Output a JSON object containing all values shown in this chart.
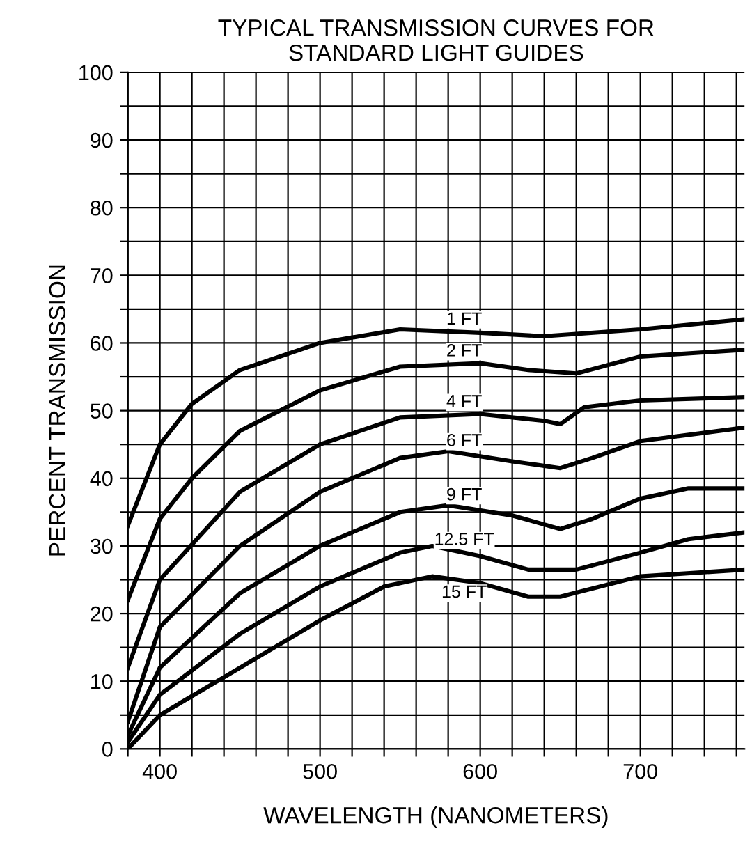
{
  "chart_data": {
    "type": "line",
    "title": "TYPICAL TRANSMISSION CURVES FOR\nSTANDARD LIGHT GUIDES",
    "xlabel": "WAVELENGTH (NANOMETERS)",
    "ylabel": "PERCENT TRANSMISSION",
    "xlim": [
      380,
      765
    ],
    "ylim": [
      0,
      100
    ],
    "xticks": [
      {
        "value": 380,
        "label": null
      },
      400,
      {
        "value": 420,
        "label": null
      },
      {
        "value": 440,
        "label": null
      },
      {
        "value": 460,
        "label": null
      },
      {
        "value": 480,
        "label": null
      },
      500,
      {
        "value": 520,
        "label": null
      },
      {
        "value": 540,
        "label": null
      },
      {
        "value": 560,
        "label": null
      },
      {
        "value": 580,
        "label": null
      },
      600,
      {
        "value": 620,
        "label": null
      },
      {
        "value": 640,
        "label": null
      },
      {
        "value": 660,
        "label": null
      },
      {
        "value": 680,
        "label": null
      },
      700,
      {
        "value": 720,
        "label": null
      },
      {
        "value": 740,
        "label": null
      },
      {
        "value": 760,
        "label": null
      }
    ],
    "yticks": [
      0,
      {
        "value": 5,
        "label": null
      },
      10,
      {
        "value": 15,
        "label": null
      },
      20,
      {
        "value": 25,
        "label": null
      },
      30,
      {
        "value": 35,
        "label": null
      },
      40,
      {
        "value": 45,
        "label": null
      },
      50,
      {
        "value": 55,
        "label": null
      },
      60,
      {
        "value": 65,
        "label": null
      },
      70,
      {
        "value": 75,
        "label": null
      },
      80,
      {
        "value": 85,
        "label": null
      },
      90,
      {
        "value": 95,
        "label": null
      },
      100
    ],
    "grid": true,
    "marker": "none",
    "line_style": "solid",
    "legend": false,
    "series": [
      {
        "name": "1 FT",
        "color": "#000000",
        "x": [
          380,
          400,
          420,
          450,
          500,
          550,
          600,
          640,
          700,
          765
        ],
        "values": [
          33,
          45,
          51,
          56,
          60,
          62,
          61.5,
          61,
          62,
          63.5
        ]
      },
      {
        "name": "2 FT",
        "color": "#000000",
        "x": [
          380,
          400,
          420,
          450,
          500,
          550,
          600,
          630,
          660,
          700,
          765
        ],
        "values": [
          22,
          34,
          40,
          47,
          53,
          56.5,
          57,
          56,
          55.5,
          58,
          59
        ]
      },
      {
        "name": "4 FT",
        "color": "#000000",
        "x": [
          380,
          400,
          450,
          500,
          550,
          600,
          640,
          650,
          665,
          700,
          765
        ],
        "values": [
          12,
          25,
          38,
          45,
          49,
          49.5,
          48.5,
          48,
          50.5,
          51.5,
          52
        ]
      },
      {
        "name": "6 FT",
        "color": "#000000",
        "x": [
          380,
          400,
          450,
          500,
          550,
          580,
          620,
          650,
          670,
          700,
          765
        ],
        "values": [
          4,
          18,
          30,
          38,
          43,
          44,
          42.5,
          41.5,
          43,
          45.5,
          47.5
        ]
      },
      {
        "name": "9 FT",
        "color": "#000000",
        "x": [
          380,
          400,
          450,
          500,
          550,
          580,
          620,
          650,
          670,
          700,
          730,
          765
        ],
        "values": [
          2,
          12,
          23,
          30,
          35,
          36,
          34.5,
          32.5,
          34,
          37,
          38.5,
          38.5
        ]
      },
      {
        "name": "12.5 FT",
        "color": "#000000",
        "x": [
          380,
          400,
          450,
          500,
          550,
          570,
          600,
          630,
          660,
          700,
          730,
          765
        ],
        "values": [
          1,
          8,
          17,
          24,
          29,
          30,
          28.5,
          26.5,
          26.5,
          29,
          31,
          32
        ]
      },
      {
        "name": "15 FT",
        "color": "#000000",
        "x": [
          380,
          400,
          450,
          500,
          540,
          570,
          600,
          630,
          650,
          700,
          765
        ],
        "values": [
          0,
          5,
          12,
          19,
          24,
          25.5,
          24.5,
          22.5,
          22.5,
          25.5,
          26.5
        ]
      }
    ]
  }
}
